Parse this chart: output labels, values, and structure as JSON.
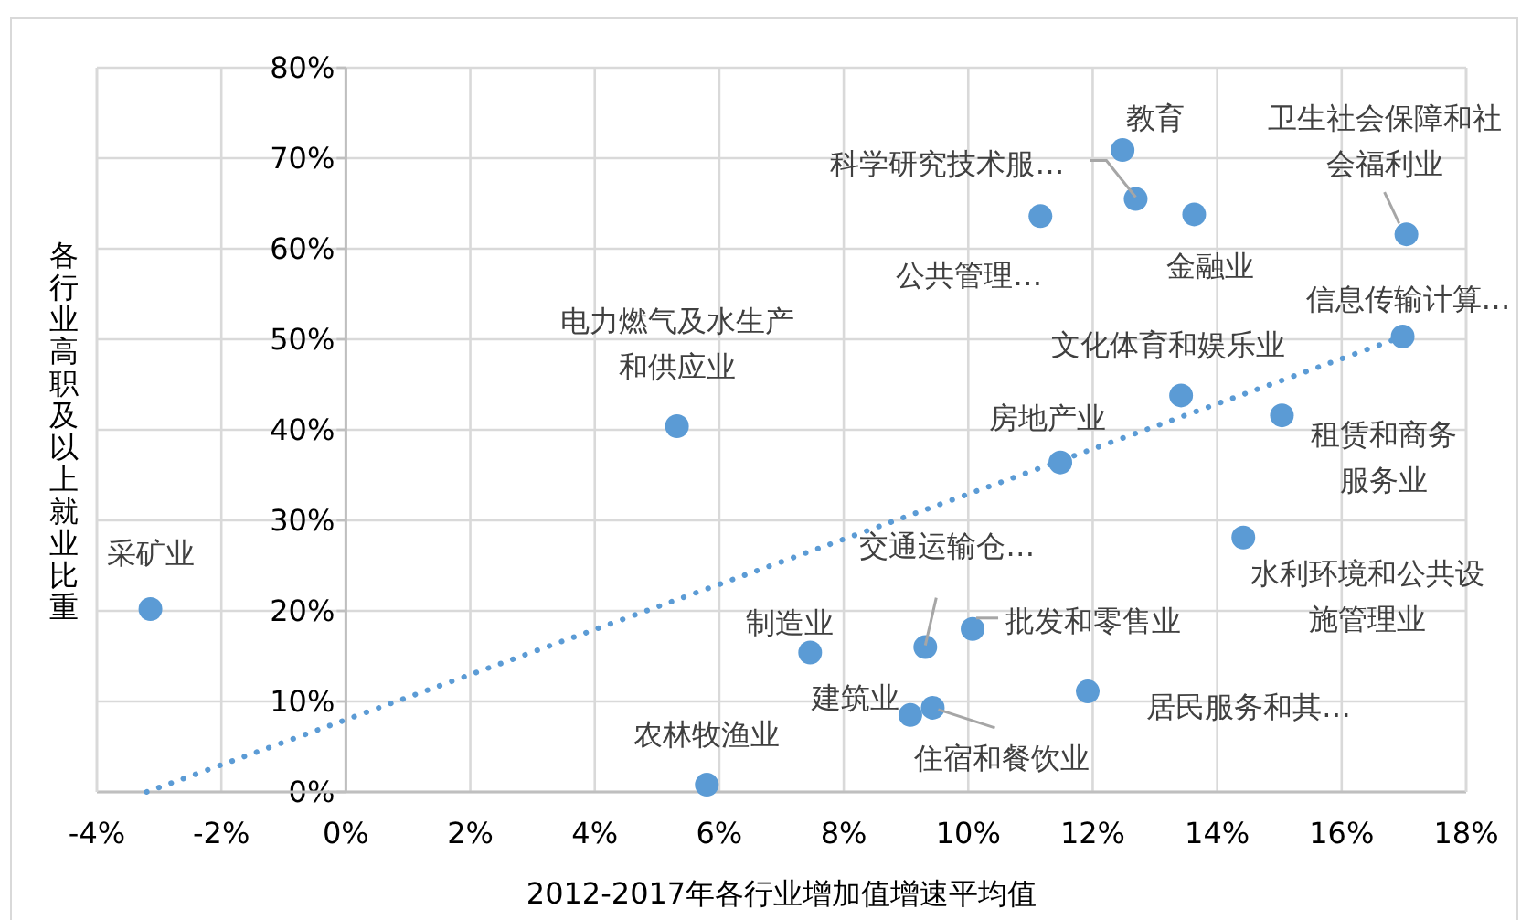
{
  "chart_data": {
    "type": "scatter",
    "xlabel": "2012-2017年各行业增加值增速平均值",
    "ylabel": "各行业高职及以上就业比重",
    "xlim": [
      -4,
      18
    ],
    "xticks": [
      {
        "value": -4,
        "label": "-4%"
      },
      {
        "value": -2,
        "label": "-2%"
      },
      {
        "value": 0,
        "label": "0%"
      },
      {
        "value": 2,
        "label": "2%"
      },
      {
        "value": 4,
        "label": "4%"
      },
      {
        "value": 6,
        "label": "6%"
      },
      {
        "value": 8,
        "label": "8%"
      },
      {
        "value": 10,
        "label": "10%"
      },
      {
        "value": 12,
        "label": "12%"
      },
      {
        "value": 14,
        "label": "14%"
      },
      {
        "value": 16,
        "label": "16%"
      },
      {
        "value": 18,
        "label": "18%"
      }
    ],
    "ylim": [
      0,
      80
    ],
    "yticks": [
      {
        "value": 0,
        "label": "0%"
      },
      {
        "value": 10,
        "label": "10%"
      },
      {
        "value": 20,
        "label": "20%"
      },
      {
        "value": 30,
        "label": "30%"
      },
      {
        "value": 40,
        "label": "40%"
      },
      {
        "value": 50,
        "label": "50%"
      },
      {
        "value": 60,
        "label": "60%"
      },
      {
        "value": 70,
        "label": "70%"
      },
      {
        "value": 80,
        "label": "80%"
      }
    ],
    "grid": true,
    "marker": "circle",
    "series": [
      {
        "type": "scatter",
        "color": "#5b9bd5",
        "x": [
          -3.14,
          5.32,
          5.8,
          7.46,
          9.07,
          9.43,
          9.31,
          10.07,
          11.92,
          11.48,
          11.16,
          12.69,
          12.48,
          13.63,
          13.42,
          15.04,
          14.42,
          16.98,
          17.04
        ],
        "values": [
          20.2,
          40.4,
          0.8,
          15.4,
          8.5,
          9.3,
          16.0,
          18.0,
          11.1,
          36.4,
          63.6,
          65.5,
          70.9,
          63.8,
          43.8,
          41.6,
          28.1,
          50.3,
          61.6
        ]
      },
      {
        "type": "line",
        "color": "#5b9bd5",
        "line_style": "dotted",
        "marker": "none",
        "x": [
          -3.2,
          16.98
        ],
        "values": [
          0,
          50.3
        ]
      }
    ],
    "annotations": [
      {
        "text": "采矿业",
        "x": -3.14,
        "y": 20.2
      },
      {
        "text": "电力燃气及水生产和供应业",
        "x": 5.32,
        "y": 40.4
      },
      {
        "text": "农林牧渔业",
        "x": 5.8,
        "y": 0.8
      },
      {
        "text": "制造业",
        "x": 7.46,
        "y": 15.4
      },
      {
        "text": "建筑业",
        "x": 9.07,
        "y": 8.5
      },
      {
        "text": "住宿和餐饮业",
        "x": 9.43,
        "y": 9.3
      },
      {
        "text": "交通运输仓…",
        "x": 9.31,
        "y": 16.0
      },
      {
        "text": "批发和零售业",
        "x": 10.07,
        "y": 18.0
      },
      {
        "text": "居民服务和其…",
        "x": 11.92,
        "y": 11.1
      },
      {
        "text": "房地产业",
        "x": 11.48,
        "y": 36.4
      },
      {
        "text": "公共管理…",
        "x": 11.16,
        "y": 63.6
      },
      {
        "text": "科学研究技术服…",
        "x": 12.69,
        "y": 65.5
      },
      {
        "text": "教育",
        "x": 12.48,
        "y": 70.9
      },
      {
        "text": "金融业",
        "x": 13.63,
        "y": 63.8
      },
      {
        "text": "文化体育和娱乐业",
        "x": 13.42,
        "y": 43.8
      },
      {
        "text": "租赁和商务服务业",
        "x": 15.04,
        "y": 41.6
      },
      {
        "text": "水利环境和公共设施管理业",
        "x": 14.42,
        "y": 28.1
      },
      {
        "text": "信息传输计算…",
        "x": 16.98,
        "y": 50.3
      },
      {
        "text": "卫生社会保障和社会福利业",
        "x": 17.04,
        "y": 61.6
      }
    ]
  }
}
